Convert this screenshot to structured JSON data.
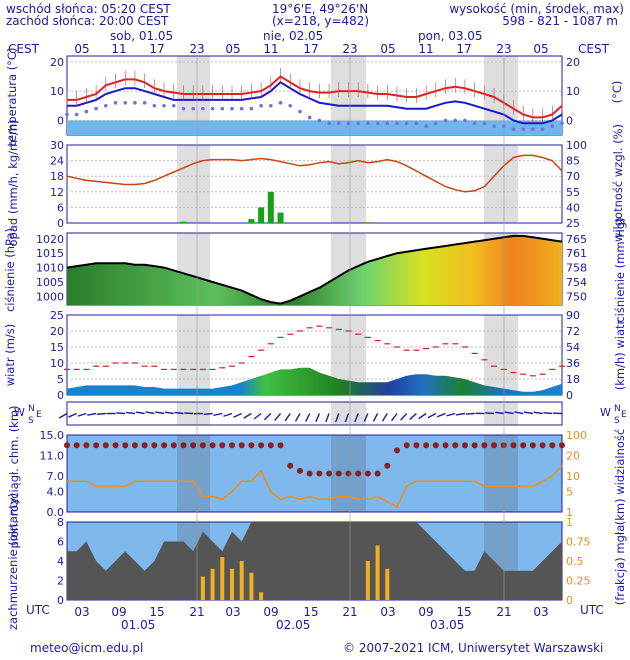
{
  "header": {
    "sunrise": "wschód słońca: 05:20 CEST",
    "sunset": "zachód słońca: 20:00 CEST",
    "coords": "19°6'E, 49°26'N",
    "grid": "(x=218, y=482)",
    "height_label": "wysokość (min, środek, max)",
    "height_values": "598 - 821 - 1087 m"
  },
  "top_axis": {
    "tz_left": "CEST",
    "tz_right": "CEST",
    "hours": [
      "05",
      "11",
      "17",
      "23",
      "05",
      "11",
      "17",
      "23",
      "05",
      "11",
      "17",
      "23",
      "05"
    ],
    "days": [
      "sob, 01.05",
      "nie, 02.05",
      "pon, 03.05"
    ]
  },
  "bottom_axis": {
    "tz_left": "UTC",
    "tz_right": "UTC",
    "hours": [
      "03",
      "09",
      "15",
      "21",
      "03",
      "09",
      "15",
      "21",
      "03",
      "09",
      "15",
      "21",
      "03"
    ],
    "dates": [
      "01.05",
      "02.05",
      "03.05"
    ]
  },
  "footer": {
    "email": "meteo@icm.edu.pl",
    "copyright": "© 2007-2021 ICM, Uniwersytet Warszawski"
  },
  "colors": {
    "text": "#1c1ca0",
    "temperature": "#e02020",
    "dewpoint": "#1818d0",
    "humidity": "#d04010",
    "precip": "#18a018",
    "wind_gust": "#d02020",
    "visibility": "#e89020",
    "cloud_base": "#8b2020"
  },
  "chart_data": [
    {
      "type": "line",
      "panel": "temperature",
      "ylabel_left": "temperatura (°C)",
      "ylabel_right": "(°C)",
      "y_ticks_left": [
        "20",
        "10",
        "0"
      ],
      "y_ticks_right": [
        "20",
        "10",
        "0"
      ],
      "ylim": [
        -5,
        22
      ],
      "series": [
        {
          "values": [
            7,
            7,
            8,
            9,
            12,
            13,
            14,
            14,
            13,
            11,
            10,
            9.5,
            9,
            9,
            9,
            9,
            9,
            9,
            9,
            9.5,
            10,
            12,
            15,
            13,
            11,
            10,
            9.5,
            9.5,
            10,
            10,
            10,
            9.5,
            9,
            9,
            8.5,
            8,
            8,
            9,
            10,
            11,
            11.5,
            11,
            10,
            9,
            8,
            6,
            4,
            2,
            1,
            1,
            2,
            5
          ]
        },
        {
          "values": [
            5,
            5,
            6,
            7,
            9,
            10,
            11,
            11,
            10,
            9,
            8,
            7,
            7,
            7,
            7,
            7,
            7,
            7,
            7,
            7.5,
            8,
            10,
            13,
            11,
            9,
            7.5,
            6,
            5.5,
            5,
            5,
            5,
            5,
            5,
            5,
            4.5,
            4,
            4,
            4,
            5,
            6,
            6.5,
            6,
            5,
            4,
            3,
            2,
            0,
            -1,
            -1,
            -1,
            0,
            2
          ]
        },
        {
          "values": [
            2,
            2,
            3,
            4,
            5,
            6,
            6,
            6,
            6,
            5,
            5,
            5,
            4,
            4,
            4,
            4,
            4,
            4,
            4,
            4,
            5,
            5,
            6,
            5,
            3,
            1,
            0,
            -1,
            -1,
            -1,
            -1,
            -1,
            -1,
            -1,
            -1,
            -1,
            -1,
            -2,
            -1,
            0,
            0,
            0,
            -1,
            -1,
            -2,
            -2,
            -3,
            -3,
            -3,
            -3,
            -2,
            -1
          ]
        }
      ]
    },
    {
      "type": "bar",
      "panel": "precipitation",
      "ylabel_left": "opad (mm/h, kg/m²/h)",
      "ylabel_right": "wilgotność wzgl. (%)",
      "y_ticks_left": [
        "30",
        "24",
        "18",
        "12",
        "6",
        "0"
      ],
      "y_ticks_right": [
        "100",
        "85",
        "70",
        "55",
        "40",
        "25"
      ],
      "ylim": [
        0,
        30
      ],
      "ylim_right": [
        25,
        100
      ],
      "precip_values": [
        0,
        0,
        0,
        0,
        0,
        0,
        0,
        0,
        0,
        0,
        0,
        0,
        0.5,
        0,
        0,
        0,
        0,
        0,
        0,
        1.5,
        6,
        12,
        4,
        0,
        0,
        0,
        0,
        0,
        0,
        0,
        0,
        0.3,
        0,
        0,
        0,
        0,
        0,
        0,
        0,
        0,
        0,
        0,
        0,
        0,
        0,
        0,
        0,
        0,
        0,
        0,
        0,
        0
      ],
      "humidity": [
        70,
        68,
        66,
        65,
        64,
        63,
        62,
        62,
        63,
        66,
        70,
        74,
        78,
        82,
        85,
        86,
        86,
        86,
        85,
        86,
        87,
        86,
        84,
        82,
        80,
        81,
        83,
        84,
        82,
        83,
        85,
        83,
        84,
        86,
        84,
        80,
        75,
        70,
        65,
        60,
        57,
        55,
        56,
        60,
        70,
        80,
        88,
        90,
        90,
        88,
        85,
        75
      ]
    },
    {
      "type": "area",
      "panel": "pressure",
      "ylabel_left": "ciśnienie (hPa)",
      "ylabel_right": "ciśnienie (mm Hg)",
      "y_ticks_left": [
        "1020",
        "1015",
        "1010",
        "1005",
        "1000"
      ],
      "y_ticks_right": [
        "765",
        "761",
        "758",
        "754",
        "750"
      ],
      "ylim": [
        997,
        1022
      ],
      "values": [
        1010,
        1010.5,
        1011,
        1011.5,
        1011.5,
        1011.5,
        1011.5,
        1011,
        1011,
        1010.5,
        1010,
        1009,
        1008,
        1007,
        1006,
        1005,
        1004,
        1003,
        1002,
        1000.5,
        999,
        998,
        997.5,
        998.5,
        1000,
        1001.5,
        1003,
        1005,
        1007,
        1009,
        1010.5,
        1012,
        1013,
        1014,
        1015,
        1015.5,
        1016,
        1016.5,
        1017,
        1017.5,
        1018,
        1018.5,
        1019,
        1019.5,
        1020,
        1020.5,
        1021,
        1021,
        1020.5,
        1020,
        1019.5,
        1019
      ]
    },
    {
      "type": "line",
      "panel": "wind",
      "ylabel_left": "wiatr (m/s)",
      "ylabel_right": "(km/h) wiatr",
      "y_ticks_left": [
        "25",
        "20",
        "15",
        "10",
        "5",
        "0"
      ],
      "y_ticks_right": [
        "90",
        "72",
        "54",
        "36",
        "18",
        "0"
      ],
      "ylim": [
        0,
        25
      ],
      "series": [
        {
          "values": [
            8,
            8,
            8,
            9,
            9,
            10,
            10,
            10,
            9,
            9,
            8,
            8,
            8,
            8,
            8,
            8,
            8.5,
            9,
            10,
            12,
            14,
            16,
            18,
            19,
            20,
            21,
            21.5,
            21,
            20.5,
            20,
            19,
            18,
            17,
            16,
            15,
            14,
            14,
            14.5,
            15,
            16,
            16,
            15,
            13,
            11,
            9,
            8,
            7,
            6.5,
            6,
            6.5,
            8,
            9
          ]
        },
        {
          "values": [
            2,
            2.5,
            3,
            3,
            3,
            3,
            3,
            3,
            2.5,
            2.5,
            2,
            2,
            2,
            2,
            2,
            2,
            2.5,
            3,
            4,
            5,
            6,
            7,
            8,
            8,
            8.5,
            8.5,
            7,
            6,
            5,
            4.5,
            4,
            4,
            4,
            4,
            5,
            6,
            6.5,
            6.5,
            6,
            6,
            5.5,
            5,
            4,
            3,
            2.5,
            2,
            1.5,
            1,
            1,
            1.5,
            2.5,
            3.5
          ]
        }
      ]
    },
    {
      "type": "scatter",
      "panel": "cloud_base_visibility",
      "ylabel_left": "pion. rozciągł. chm. (km)",
      "ylabel_right": "(km) widzialność",
      "y_ticks_left": [
        "15.0",
        "11.0",
        "7.0",
        "4.0",
        "0.0"
      ],
      "y_ticks_right": [
        "100",
        "20",
        "10",
        "5",
        "1"
      ],
      "ylim": [
        0,
        15
      ],
      "cloud_base": [
        13,
        13,
        13,
        13,
        13,
        13,
        13,
        13,
        13,
        13,
        13,
        13,
        13,
        13,
        13,
        13,
        13,
        13,
        13,
        13,
        13,
        13,
        13,
        9,
        8,
        7.5,
        7.5,
        7.5,
        7.5,
        7.5,
        7.5,
        7.5,
        7.5,
        9,
        12,
        13,
        13,
        13,
        13,
        13,
        13,
        13,
        13,
        13,
        13,
        13,
        13,
        13,
        13,
        13,
        13,
        13
      ],
      "visibility_km": [
        6,
        6,
        6,
        5,
        5,
        5,
        5,
        6,
        6,
        6,
        6,
        6,
        6,
        6,
        3,
        3,
        2.5,
        4,
        6,
        6,
        8,
        4,
        2.5,
        3,
        2.5,
        3,
        2.5,
        2.5,
        3,
        3,
        2.5,
        2.5,
        3,
        2,
        1,
        5,
        6,
        6,
        6,
        6,
        6,
        6,
        6,
        5,
        5,
        5,
        5,
        5,
        5,
        6,
        7,
        9
      ]
    },
    {
      "type": "area",
      "panel": "cloud_cover",
      "ylabel_left": "zachmurzenie (oktanty)",
      "ylabel_right": "(frakcja) mgła",
      "y_ticks_left": [
        "8",
        "6",
        "4",
        "2",
        "0"
      ],
      "y_ticks_right": [
        "1",
        "0.75",
        "0.5",
        "0.25",
        "0"
      ],
      "ylim": [
        0,
        8
      ],
      "total_cloud": [
        5,
        5,
        6,
        4,
        3,
        4,
        5,
        4,
        3,
        4,
        6,
        6,
        6,
        5,
        7,
        6,
        5,
        7,
        6,
        8,
        8,
        8,
        8,
        8,
        8,
        8,
        8,
        8,
        8,
        8,
        8,
        8,
        8,
        8,
        8,
        8,
        8,
        7,
        6,
        5,
        4,
        3,
        3,
        5,
        4,
        3,
        3,
        3,
        3,
        4,
        5,
        6
      ],
      "fog_fraction": [
        0,
        0,
        0,
        0,
        0,
        0,
        0,
        0,
        0,
        0,
        0,
        0,
        0,
        0,
        0.3,
        0.4,
        0.55,
        0.4,
        0.5,
        0.35,
        0.1,
        0,
        0,
        0,
        0,
        0,
        0,
        0,
        0,
        0,
        0,
        0.5,
        0.7,
        0.4,
        0,
        0,
        0,
        0,
        0,
        0,
        0,
        0,
        0,
        0,
        0,
        0,
        0,
        0,
        0,
        0,
        0,
        0
      ]
    }
  ]
}
